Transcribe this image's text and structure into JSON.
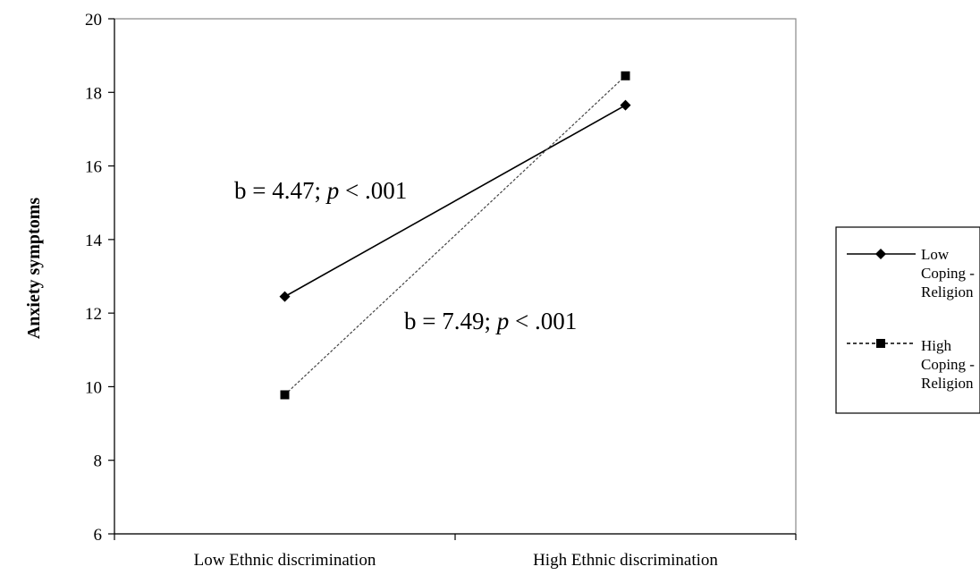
{
  "chart_data": {
    "type": "line",
    "categories": [
      "Low Ethnic discrimination",
      "High Ethnic discrimination"
    ],
    "ylabel": "Anxiety symptoms",
    "xlabel": "",
    "ylim": [
      6,
      20
    ],
    "yticks": [
      "6",
      "8",
      "10",
      "12",
      "14",
      "16",
      "18",
      "20"
    ],
    "grid": false,
    "legend_position": "right",
    "series": [
      {
        "name": "Low Coping - Religion",
        "legend_lines": [
          "Low",
          "Coping -",
          "Religion"
        ],
        "values": [
          12.45,
          17.65
        ],
        "marker": "diamond",
        "line_style": "solid"
      },
      {
        "name": "High Coping - Religion",
        "legend_lines": [
          "High",
          "Coping -",
          "Religion"
        ],
        "values": [
          9.78,
          18.45
        ],
        "marker": "square",
        "line_style": "dashed"
      }
    ],
    "annotations": [
      {
        "id": "annot-low",
        "b_text": "b = 4.47; ",
        "p_text": "p",
        "rest_text": " < .001"
      },
      {
        "id": "annot-high",
        "b_text": "b = 7.49; ",
        "p_text": "p",
        "rest_text": " < .001"
      }
    ]
  }
}
